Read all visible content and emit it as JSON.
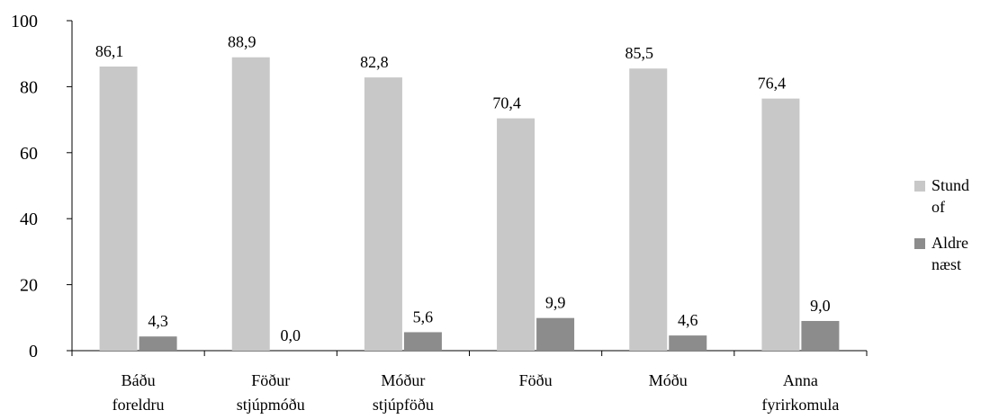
{
  "chart_data": {
    "type": "bar",
    "categories": [
      [
        "Báðu",
        "foreldru"
      ],
      [
        "Föður",
        "stjúpmóðu"
      ],
      [
        "Móður",
        "stjúpföðu"
      ],
      [
        "Föðu"
      ],
      [
        "Móðu"
      ],
      [
        "Anna",
        "fyrirkomula"
      ]
    ],
    "series": [
      {
        "name": "Stund of",
        "legend_lines": [
          "Stund",
          "of"
        ],
        "color": "#c8c8c8",
        "values": [
          86.1,
          88.9,
          82.8,
          70.4,
          85.5,
          76.4
        ],
        "labels": [
          "86,1",
          "88,9",
          "82,8",
          "70,4",
          "85,5",
          "76,4"
        ]
      },
      {
        "name": "Aldre næst",
        "legend_lines": [
          "Aldre",
          "næst"
        ],
        "color": "#8c8c8c",
        "values": [
          4.3,
          0.0,
          5.6,
          9.9,
          4.6,
          9.0
        ],
        "labels": [
          "4,3",
          "0,0",
          "5,6",
          "9,9",
          "4,6",
          "9,0"
        ]
      }
    ],
    "yticks": [
      "0",
      "20",
      "40",
      "60",
      "80",
      "100"
    ],
    "ylim": [
      0,
      100
    ],
    "grid": false,
    "legend_position": "right"
  }
}
